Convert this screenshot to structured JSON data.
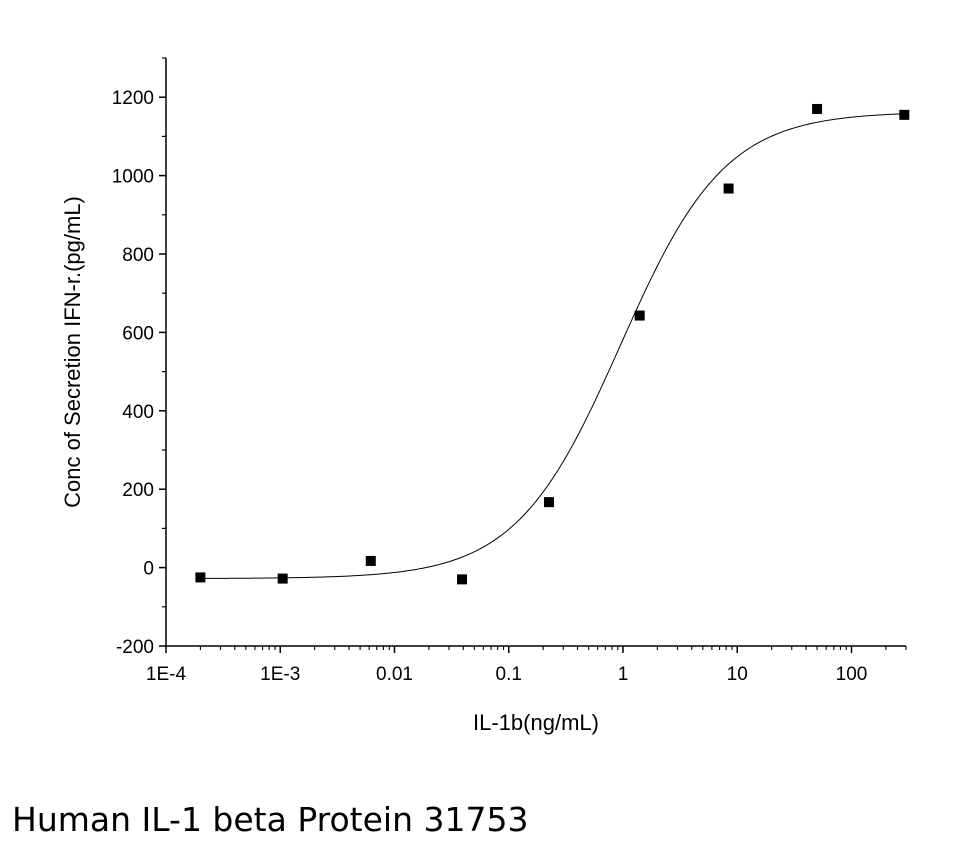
{
  "chart_data": {
    "type": "scatter",
    "xlabel": "IL-1b(ng/mL)",
    "ylabel": "Conc of Secretion IFN-r.(pg/mL)",
    "x_scale": "log",
    "xlim": [
      0.0001,
      300
    ],
    "ylim": [
      -200,
      1300
    ],
    "x_ticks": [
      {
        "value": 0.0001,
        "label": "1E-4"
      },
      {
        "value": 0.001,
        "label": "1E-3"
      },
      {
        "value": 0.01,
        "label": "0.01"
      },
      {
        "value": 0.1,
        "label": "0.1"
      },
      {
        "value": 1,
        "label": "1"
      },
      {
        "value": 10,
        "label": "10"
      },
      {
        "value": 100,
        "label": "100"
      }
    ],
    "y_ticks": [
      {
        "value": -200,
        "label": "-200"
      },
      {
        "value": 0,
        "label": "0"
      },
      {
        "value": 200,
        "label": "200"
      },
      {
        "value": 400,
        "label": "400"
      },
      {
        "value": 600,
        "label": "600"
      },
      {
        "value": 800,
        "label": "800"
      },
      {
        "value": 1000,
        "label": "1000"
      },
      {
        "value": 1200,
        "label": "1200"
      }
    ],
    "grid": false,
    "series": [
      {
        "marker": "square",
        "color": "#000000",
        "points": [
          {
            "x": 0.0002,
            "y": -25
          },
          {
            "x": 0.00105,
            "y": -28
          },
          {
            "x": 0.0062,
            "y": 17
          },
          {
            "x": 0.039,
            "y": -30
          },
          {
            "x": 0.225,
            "y": 167
          },
          {
            "x": 1.4,
            "y": 643
          },
          {
            "x": 8.4,
            "y": 967
          },
          {
            "x": 50,
            "y": 1170
          },
          {
            "x": 290,
            "y": 1155
          }
        ]
      }
    ],
    "fit_curve": {
      "model": "4PL",
      "bottom": -28,
      "top": 1163,
      "ec50": 0.95,
      "hill": 0.95,
      "x_range": [
        0.0002,
        290
      ],
      "color": "#000000"
    }
  },
  "caption": "Human IL-1 beta Protein 31753"
}
